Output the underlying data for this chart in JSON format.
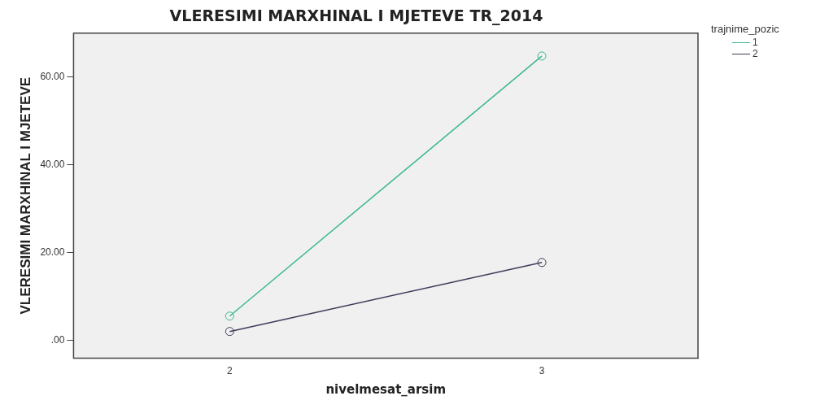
{
  "chart_data": {
    "type": "line",
    "title": "VLERESIMI MARXHINAL I MJETEVE TR_2014",
    "xlabel": "nivelmesat_arsim",
    "ylabel": "VLERESIMI MARXHINAL I MJETEVE",
    "legend_title": "trajnime_pozic",
    "categories": [
      "2",
      "3"
    ],
    "series": [
      {
        "name": "1",
        "color": "#3cb88a",
        "values": [
          5.6,
          64.8
        ]
      },
      {
        "name": "2",
        "color": "#3c3c5a",
        "values": [
          2.1,
          17.8
        ]
      }
    ],
    "ylim": [
      -4,
      70
    ],
    "yticks": [
      {
        "value": 0,
        "label": ".00"
      },
      {
        "value": 20,
        "label": "20.00"
      },
      {
        "value": 40,
        "label": "40.00"
      },
      {
        "value": 60,
        "label": "60.00"
      }
    ],
    "grid": false,
    "legend": "top right",
    "marker": "circle",
    "line_style": "solid"
  }
}
